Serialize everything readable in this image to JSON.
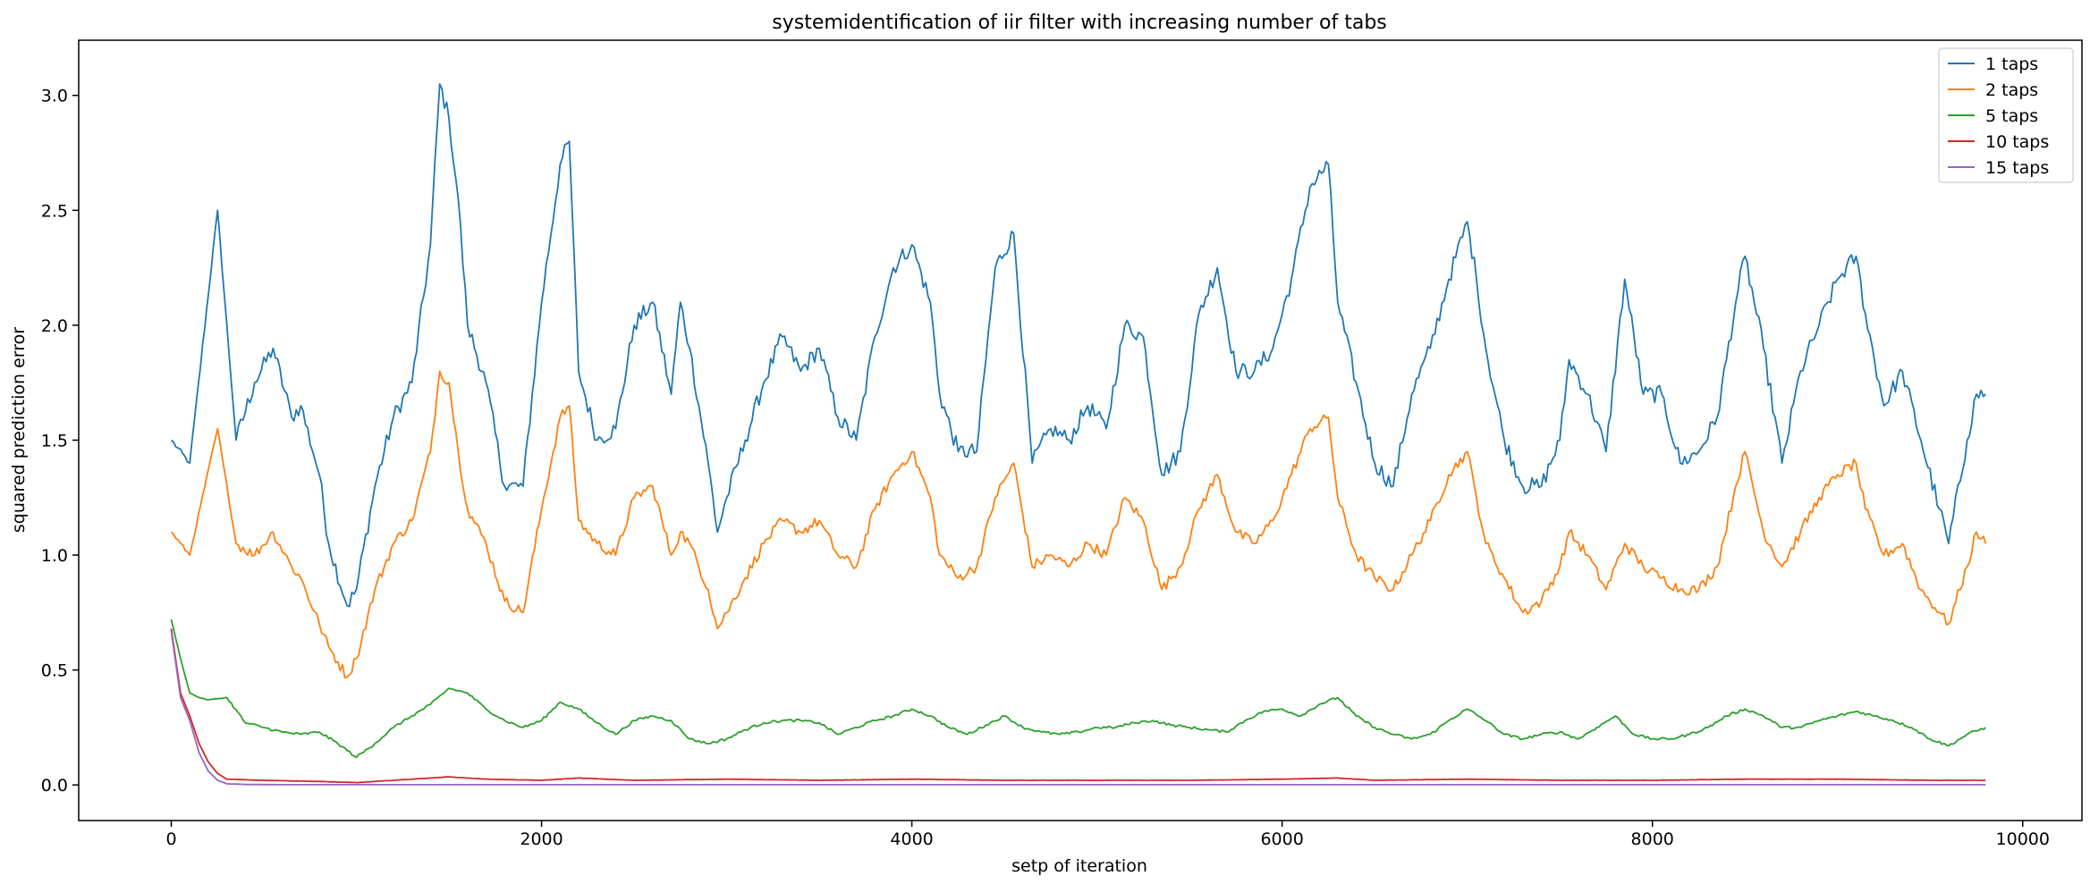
{
  "chart_data": {
    "type": "line",
    "title": "systemidentification of iir filter with increasing number of tabs",
    "xlabel": "setp of iteration",
    "ylabel": "squared prediction error",
    "xlim": [
      -500,
      10320
    ],
    "ylim": [
      -0.155,
      3.24
    ],
    "xticks": [
      0,
      2000,
      4000,
      6000,
      8000,
      10000
    ],
    "yticks": [
      0.0,
      0.5,
      1.0,
      1.5,
      2.0,
      2.5,
      3.0
    ],
    "xtick_labels": [
      "0",
      "2000",
      "4000",
      "6000",
      "8000",
      "10000"
    ],
    "ytick_labels": [
      "0.0",
      "0.5",
      "1.0",
      "1.5",
      "2.0",
      "2.5",
      "3.0"
    ],
    "legend_position": "top-right",
    "grid": false,
    "series": [
      {
        "name": "1 taps",
        "color": "#1f77b4",
        "x": [
          0,
          100,
          250,
          350,
          450,
          550,
          650,
          700,
          800,
          850,
          950,
          1000,
          1100,
          1200,
          1300,
          1400,
          1450,
          1500,
          1550,
          1600,
          1700,
          1800,
          1900,
          2000,
          2100,
          2150,
          2200,
          2300,
          2400,
          2500,
          2600,
          2700,
          2750,
          2800,
          2900,
          2950,
          3000,
          3100,
          3200,
          3300,
          3400,
          3500,
          3600,
          3700,
          3800,
          3900,
          4000,
          4100,
          4150,
          4250,
          4350,
          4450,
          4550,
          4650,
          4750,
          4850,
          4950,
          5050,
          5150,
          5250,
          5350,
          5450,
          5550,
          5650,
          5750,
          5850,
          5950,
          6050,
          6150,
          6250,
          6300,
          6400,
          6500,
          6600,
          6700,
          6800,
          6900,
          7000,
          7050,
          7100,
          7200,
          7300,
          7400,
          7500,
          7550,
          7650,
          7750,
          7850,
          7950,
          8050,
          8150,
          8250,
          8350,
          8450,
          8500,
          8600,
          8700,
          8800,
          8900,
          9000,
          9100,
          9150,
          9250,
          9350,
          9450,
          9550,
          9600,
          9700,
          9750,
          9800
        ],
        "values": [
          1.5,
          1.4,
          2.5,
          1.5,
          1.75,
          1.9,
          1.6,
          1.65,
          1.35,
          1.05,
          0.78,
          0.85,
          1.3,
          1.6,
          1.75,
          2.35,
          3.05,
          2.9,
          2.55,
          2.0,
          1.75,
          1.3,
          1.3,
          2.1,
          2.7,
          2.8,
          1.8,
          1.5,
          1.55,
          2.0,
          2.1,
          1.7,
          2.1,
          1.9,
          1.4,
          1.1,
          1.25,
          1.5,
          1.75,
          1.95,
          1.8,
          1.9,
          1.6,
          1.5,
          1.95,
          2.25,
          2.35,
          2.1,
          1.7,
          1.45,
          1.45,
          2.25,
          2.4,
          1.4,
          1.55,
          1.5,
          1.65,
          1.55,
          2.0,
          1.95,
          1.35,
          1.45,
          2.05,
          2.25,
          1.8,
          1.8,
          1.9,
          2.2,
          2.6,
          2.7,
          2.1,
          1.75,
          1.4,
          1.3,
          1.7,
          1.9,
          2.2,
          2.45,
          2.2,
          1.9,
          1.5,
          1.3,
          1.3,
          1.5,
          1.85,
          1.7,
          1.45,
          2.2,
          1.7,
          1.7,
          1.4,
          1.45,
          1.6,
          2.1,
          2.3,
          1.9,
          1.4,
          1.8,
          2.0,
          2.2,
          2.3,
          2.05,
          1.65,
          1.8,
          1.5,
          1.2,
          1.05,
          1.5,
          1.7,
          1.7
        ]
      },
      {
        "name": "2 taps",
        "color": "#ff7f0e",
        "x": [
          0,
          100,
          250,
          350,
          450,
          550,
          650,
          700,
          800,
          850,
          950,
          1000,
          1100,
          1200,
          1300,
          1400,
          1450,
          1500,
          1550,
          1600,
          1700,
          1800,
          1900,
          2000,
          2100,
          2150,
          2200,
          2300,
          2400,
          2500,
          2600,
          2700,
          2750,
          2800,
          2900,
          2950,
          3000,
          3100,
          3200,
          3300,
          3400,
          3500,
          3600,
          3700,
          3800,
          3900,
          4000,
          4100,
          4150,
          4250,
          4350,
          4450,
          4550,
          4650,
          4750,
          4850,
          4950,
          5050,
          5150,
          5250,
          5350,
          5450,
          5550,
          5650,
          5750,
          5850,
          5950,
          6050,
          6150,
          6250,
          6300,
          6400,
          6500,
          6600,
          6700,
          6800,
          6900,
          7000,
          7050,
          7100,
          7200,
          7300,
          7400,
          7500,
          7550,
          7650,
          7750,
          7850,
          7950,
          8050,
          8150,
          8250,
          8350,
          8450,
          8500,
          8600,
          8700,
          8800,
          8900,
          9000,
          9100,
          9150,
          9250,
          9350,
          9450,
          9550,
          9600,
          9700,
          9750,
          9800
        ],
        "values": [
          1.1,
          1.0,
          1.55,
          1.05,
          1.0,
          1.1,
          0.95,
          0.9,
          0.7,
          0.6,
          0.47,
          0.55,
          0.85,
          1.05,
          1.15,
          1.45,
          1.8,
          1.75,
          1.45,
          1.2,
          1.05,
          0.8,
          0.75,
          1.2,
          1.6,
          1.65,
          1.15,
          1.05,
          1.0,
          1.25,
          1.3,
          1.0,
          1.1,
          1.05,
          0.85,
          0.68,
          0.75,
          0.9,
          1.05,
          1.15,
          1.1,
          1.15,
          1.0,
          0.95,
          1.2,
          1.35,
          1.45,
          1.25,
          1.0,
          0.9,
          0.95,
          1.25,
          1.4,
          0.95,
          1.0,
          0.95,
          1.05,
          1.0,
          1.25,
          1.15,
          0.85,
          0.95,
          1.2,
          1.35,
          1.1,
          1.05,
          1.15,
          1.35,
          1.55,
          1.6,
          1.25,
          1.0,
          0.9,
          0.85,
          1.0,
          1.15,
          1.35,
          1.45,
          1.25,
          1.05,
          0.9,
          0.75,
          0.8,
          0.95,
          1.1,
          1.0,
          0.85,
          1.05,
          0.95,
          0.9,
          0.85,
          0.85,
          0.95,
          1.3,
          1.45,
          1.1,
          0.95,
          1.1,
          1.25,
          1.35,
          1.4,
          1.2,
          1.0,
          1.05,
          0.85,
          0.75,
          0.7,
          0.95,
          1.1,
          1.05
        ]
      },
      {
        "name": "5 taps",
        "color": "#2ca02c",
        "x": [
          0,
          50,
          100,
          150,
          200,
          300,
          400,
          500,
          600,
          700,
          800,
          900,
          1000,
          1100,
          1200,
          1300,
          1400,
          1500,
          1600,
          1700,
          1800,
          1900,
          2000,
          2100,
          2200,
          2300,
          2400,
          2500,
          2600,
          2700,
          2800,
          2900,
          3000,
          3100,
          3200,
          3300,
          3400,
          3500,
          3600,
          3700,
          3800,
          3900,
          4000,
          4100,
          4200,
          4300,
          4400,
          4500,
          4600,
          4700,
          4800,
          4900,
          5000,
          5100,
          5200,
          5300,
          5400,
          5500,
          5600,
          5700,
          5800,
          5900,
          6000,
          6100,
          6200,
          6300,
          6400,
          6500,
          6600,
          6700,
          6800,
          6900,
          7000,
          7100,
          7200,
          7300,
          7400,
          7500,
          7600,
          7700,
          7800,
          7900,
          8000,
          8100,
          8200,
          8300,
          8400,
          8500,
          8600,
          8700,
          8800,
          8900,
          9000,
          9100,
          9200,
          9300,
          9400,
          9500,
          9600,
          9700,
          9800
        ],
        "values": [
          0.72,
          0.55,
          0.4,
          0.38,
          0.37,
          0.38,
          0.27,
          0.25,
          0.23,
          0.22,
          0.23,
          0.18,
          0.12,
          0.18,
          0.25,
          0.3,
          0.35,
          0.42,
          0.4,
          0.33,
          0.28,
          0.25,
          0.28,
          0.36,
          0.33,
          0.27,
          0.22,
          0.28,
          0.3,
          0.28,
          0.2,
          0.18,
          0.2,
          0.24,
          0.27,
          0.28,
          0.28,
          0.27,
          0.22,
          0.25,
          0.28,
          0.3,
          0.33,
          0.3,
          0.25,
          0.22,
          0.26,
          0.3,
          0.25,
          0.23,
          0.22,
          0.23,
          0.25,
          0.25,
          0.27,
          0.28,
          0.26,
          0.25,
          0.24,
          0.23,
          0.28,
          0.32,
          0.33,
          0.3,
          0.35,
          0.38,
          0.3,
          0.25,
          0.22,
          0.2,
          0.22,
          0.28,
          0.33,
          0.28,
          0.22,
          0.2,
          0.22,
          0.23,
          0.2,
          0.25,
          0.3,
          0.22,
          0.2,
          0.2,
          0.22,
          0.25,
          0.3,
          0.33,
          0.3,
          0.25,
          0.25,
          0.28,
          0.3,
          0.32,
          0.3,
          0.28,
          0.25,
          0.2,
          0.17,
          0.22,
          0.25
        ]
      },
      {
        "name": "10 taps",
        "color": "#d62728",
        "x": [
          0,
          50,
          100,
          150,
          200,
          250,
          300,
          500,
          800,
          1000,
          1200,
          1400,
          1500,
          1700,
          2000,
          2200,
          2500,
          3000,
          3500,
          4000,
          4500,
          5000,
          5500,
          6000,
          6300,
          6500,
          7000,
          7500,
          8000,
          8500,
          9000,
          9500,
          9800
        ],
        "values": [
          0.68,
          0.4,
          0.3,
          0.18,
          0.1,
          0.05,
          0.025,
          0.02,
          0.015,
          0.01,
          0.02,
          0.03,
          0.035,
          0.025,
          0.02,
          0.03,
          0.02,
          0.025,
          0.02,
          0.025,
          0.02,
          0.02,
          0.02,
          0.025,
          0.03,
          0.02,
          0.025,
          0.02,
          0.02,
          0.025,
          0.025,
          0.02,
          0.02
        ]
      },
      {
        "name": "15 taps",
        "color": "#9467bd",
        "x": [
          0,
          50,
          100,
          150,
          200,
          250,
          300,
          400,
          600,
          1000,
          1500,
          2000,
          3000,
          4000,
          5000,
          6000,
          7000,
          8000,
          9000,
          9800
        ],
        "values": [
          0.67,
          0.38,
          0.28,
          0.14,
          0.06,
          0.02,
          0.005,
          0.002,
          0.001,
          0.001,
          0.001,
          0.001,
          0.001,
          0.001,
          0.001,
          0.001,
          0.001,
          0.001,
          0.001,
          0.001
        ]
      }
    ]
  }
}
